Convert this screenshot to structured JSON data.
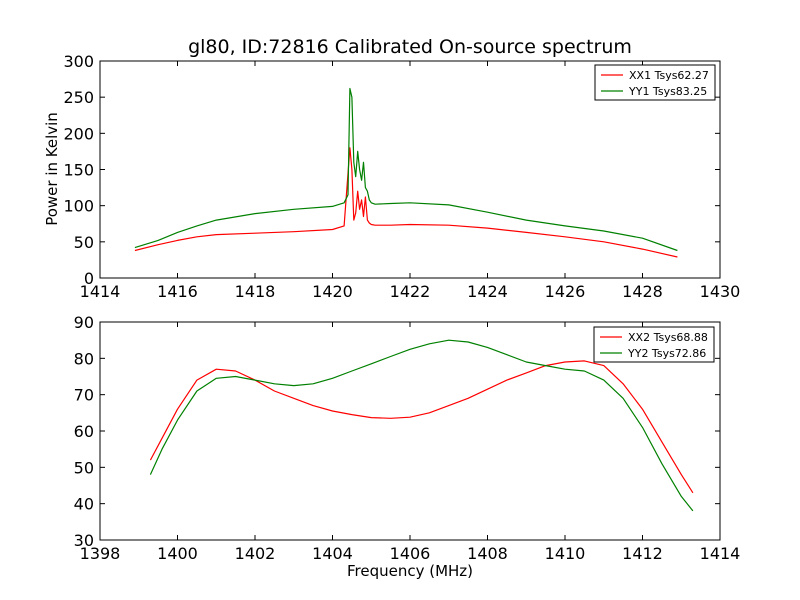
{
  "chart_data": [
    {
      "type": "line",
      "title": "gl80, ID:72816 Calibrated On-source spectrum",
      "xlabel": "",
      "ylabel": "Power in Kelvin",
      "xlim": [
        1414,
        1430
      ],
      "ylim": [
        0,
        300
      ],
      "xticks": [
        "1414",
        "1416",
        "1418",
        "1420",
        "1422",
        "1424",
        "1426",
        "1428",
        "1430"
      ],
      "yticks": [
        "0",
        "50",
        "100",
        "150",
        "200",
        "250",
        "300"
      ],
      "grid": false,
      "legend_position": "top-right",
      "series": [
        {
          "name": "XX1 Tsys62.27",
          "color": "#ff0000",
          "x": [
            1414.9,
            1415.5,
            1416.0,
            1416.5,
            1417.0,
            1418.0,
            1419.0,
            1420.0,
            1420.3,
            1420.45,
            1420.5,
            1420.55,
            1420.6,
            1420.65,
            1420.7,
            1420.75,
            1420.8,
            1420.85,
            1420.9,
            1420.95,
            1421.0,
            1421.1,
            1421.5,
            1422.0,
            1423.0,
            1424.0,
            1425.0,
            1426.0,
            1427.0,
            1428.0,
            1428.9
          ],
          "y": [
            38,
            46,
            52,
            57,
            60,
            62,
            64,
            67,
            72,
            180,
            150,
            80,
            90,
            120,
            95,
            108,
            85,
            112,
            80,
            76,
            74,
            73,
            73,
            74,
            73,
            69,
            63,
            57,
            50,
            40,
            29
          ]
        },
        {
          "name": "YY1 Tsys83.25",
          "color": "#008000",
          "x": [
            1414.9,
            1415.5,
            1416.0,
            1416.5,
            1417.0,
            1418.0,
            1419.0,
            1420.0,
            1420.3,
            1420.4,
            1420.45,
            1420.5,
            1420.55,
            1420.6,
            1420.65,
            1420.7,
            1420.75,
            1420.8,
            1420.85,
            1420.9,
            1420.95,
            1421.0,
            1421.1,
            1421.5,
            1422.0,
            1423.0,
            1424.0,
            1425.0,
            1426.0,
            1427.0,
            1428.0,
            1428.9
          ],
          "y": [
            42,
            52,
            63,
            72,
            80,
            89,
            95,
            99,
            104,
            115,
            262,
            250,
            160,
            140,
            175,
            150,
            135,
            160,
            125,
            120,
            108,
            104,
            102,
            103,
            104,
            101,
            91,
            80,
            72,
            65,
            55,
            38
          ]
        }
      ]
    },
    {
      "type": "line",
      "title": "",
      "xlabel": "Frequency (MHz)",
      "ylabel": "",
      "xlim": [
        1398,
        1414
      ],
      "ylim": [
        30,
        90
      ],
      "xticks": [
        "1398",
        "1400",
        "1402",
        "1404",
        "1406",
        "1408",
        "1410",
        "1412",
        "1414"
      ],
      "yticks": [
        "30",
        "40",
        "50",
        "60",
        "70",
        "80",
        "90"
      ],
      "grid": false,
      "legend_position": "top-right",
      "series": [
        {
          "name": "XX2 Tsys68.88",
          "color": "#ff0000",
          "x": [
            1399.3,
            1399.6,
            1400.0,
            1400.5,
            1401.0,
            1401.5,
            1402.0,
            1402.5,
            1403.0,
            1403.5,
            1404.0,
            1404.5,
            1405.0,
            1405.5,
            1406.0,
            1406.5,
            1407.0,
            1407.5,
            1408.0,
            1408.5,
            1409.0,
            1409.5,
            1410.0,
            1410.5,
            1411.0,
            1411.5,
            1412.0,
            1412.5,
            1413.0,
            1413.3
          ],
          "y": [
            52,
            58,
            66,
            74,
            77,
            76.5,
            74,
            71,
            69,
            67,
            65.5,
            64.5,
            63.7,
            63.5,
            63.8,
            65,
            67,
            69,
            71.5,
            74,
            76,
            78,
            79,
            79.3,
            78,
            73,
            66,
            57,
            48,
            43
          ]
        },
        {
          "name": "YY2 Tsys72.86",
          "color": "#008000",
          "x": [
            1399.3,
            1399.6,
            1400.0,
            1400.5,
            1401.0,
            1401.5,
            1402.0,
            1402.5,
            1403.0,
            1403.5,
            1404.0,
            1404.5,
            1405.0,
            1405.5,
            1406.0,
            1406.5,
            1407.0,
            1407.5,
            1408.0,
            1408.5,
            1409.0,
            1409.5,
            1410.0,
            1410.5,
            1411.0,
            1411.5,
            1412.0,
            1412.5,
            1413.0,
            1413.3
          ],
          "y": [
            48,
            55,
            63,
            71,
            74.5,
            75,
            74,
            73,
            72.5,
            73,
            74.5,
            76.5,
            78.5,
            80.5,
            82.5,
            84,
            85,
            84.5,
            83,
            81,
            79,
            78,
            77,
            76.5,
            74,
            69,
            61,
            51,
            42,
            38
          ]
        }
      ]
    }
  ]
}
